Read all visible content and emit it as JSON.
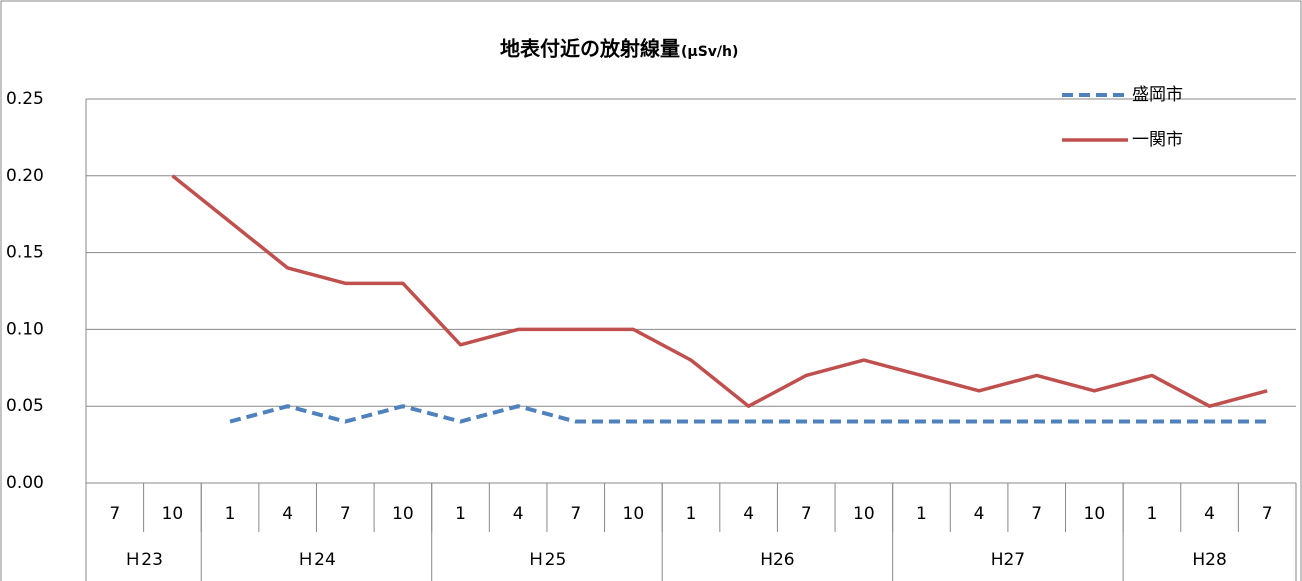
{
  "chart_data": {
    "type": "line",
    "title": "地表付近の放射線量",
    "title_unit": "(μSv/h)",
    "categories": [
      "7",
      "10",
      "1",
      "4",
      "7",
      "10",
      "1",
      "4",
      "7",
      "10",
      "1",
      "4",
      "7",
      "10",
      "1",
      "4",
      "7",
      "10",
      "1",
      "4",
      "7"
    ],
    "groups": [
      {
        "label": "Ｈ23",
        "count": 2
      },
      {
        "label": "Ｈ24",
        "count": 4
      },
      {
        "label": "Ｈ25",
        "count": 4
      },
      {
        "label": "H26",
        "count": 4
      },
      {
        "label": "H27",
        "count": 4
      },
      {
        "label": "H28",
        "count": 3
      }
    ],
    "series": [
      {
        "name": "盛岡市",
        "color": "#4f81bd",
        "dashed": true,
        "values": [
          null,
          null,
          0.04,
          0.05,
          0.04,
          0.05,
          0.04,
          0.05,
          0.04,
          0.04,
          0.04,
          0.04,
          0.04,
          0.04,
          0.04,
          0.04,
          0.04,
          0.04,
          0.04,
          0.04,
          0.04
        ]
      },
      {
        "name": "一関市",
        "color": "#c0504d",
        "dashed": false,
        "values": [
          null,
          0.2,
          0.17,
          0.14,
          0.13,
          0.13,
          0.09,
          0.1,
          0.1,
          0.1,
          0.08,
          0.05,
          0.07,
          0.08,
          0.07,
          0.06,
          0.07,
          0.06,
          0.07,
          0.05,
          0.06
        ]
      }
    ],
    "ylim": [
      0,
      0.25
    ],
    "yticks": [
      {
        "value": 0,
        "label": "0.00"
      },
      {
        "value": 0.05,
        "label": "0.05"
      },
      {
        "value": 0.1,
        "label": "0.10"
      },
      {
        "value": 0.15,
        "label": "0.15"
      },
      {
        "value": 0.2,
        "label": "0.20"
      },
      {
        "value": 0.25,
        "label": "0.25"
      }
    ],
    "grid": true
  }
}
